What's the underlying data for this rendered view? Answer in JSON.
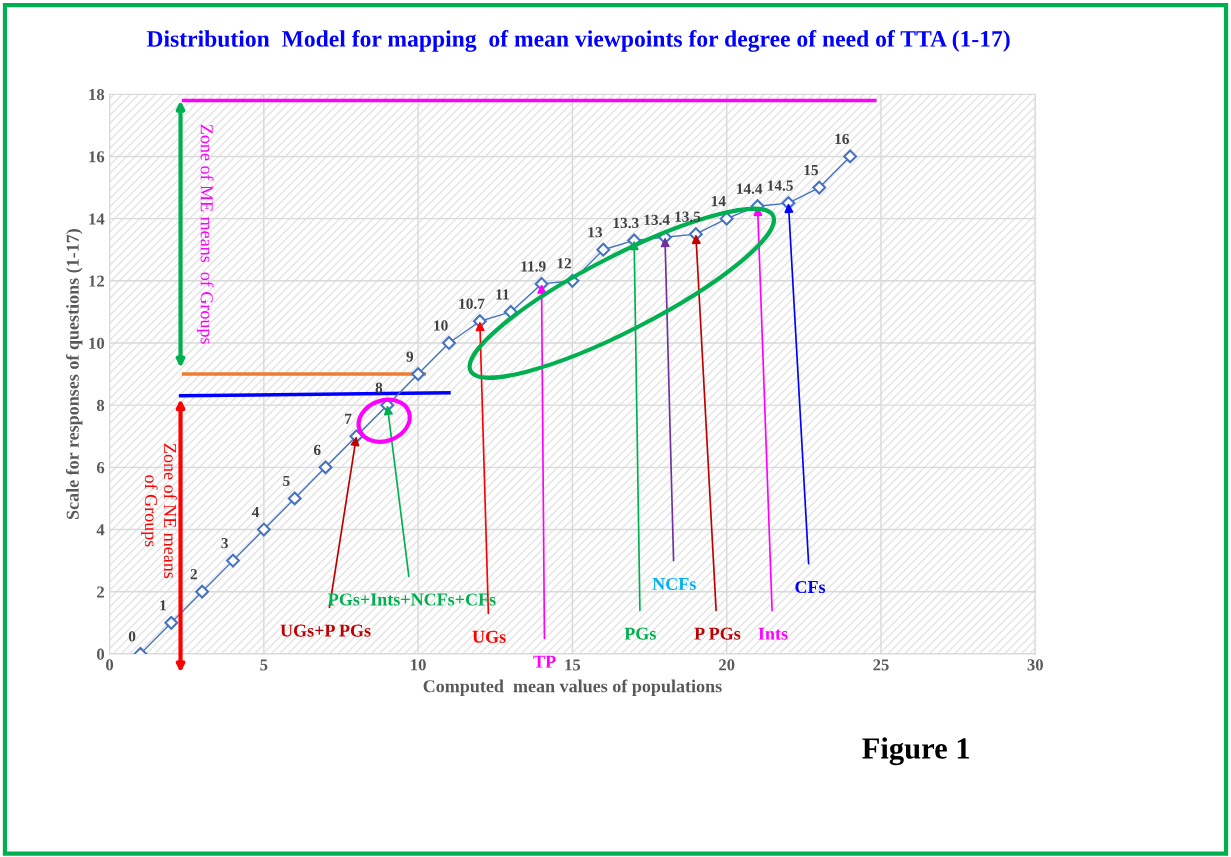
{
  "chart_data": {
    "type": "line",
    "title": "Distribution  Model for mapping  of mean viewpoints for degree of need of TTA (1-17)",
    "xlabel": "Computed  mean values of populations",
    "ylabel": "Scale for responses of questions (1-17)",
    "xlim": [
      0,
      30
    ],
    "xticks": [
      0,
      5,
      10,
      15,
      20,
      25,
      30
    ],
    "ylim": [
      0,
      18
    ],
    "yticks": [
      0,
      2,
      4,
      6,
      8,
      10,
      12,
      14,
      16,
      18
    ],
    "grid": true,
    "marker": "diamond",
    "line_style": "solid",
    "series": [
      {
        "color": "#4472c4",
        "x": [
          1,
          2,
          3,
          4,
          5,
          6,
          7,
          8,
          9,
          10,
          11,
          12,
          13,
          14,
          15,
          16,
          17,
          18,
          19,
          20,
          21,
          22,
          23,
          24
        ],
        "values": [
          0,
          1,
          2,
          3,
          4,
          5,
          6,
          7,
          8,
          9,
          10,
          10.7,
          11,
          11.9,
          12,
          13,
          13.3,
          13.4,
          13.5,
          14,
          14.4,
          14.5,
          15,
          16
        ],
        "value_labels": [
          "0",
          "1",
          "2",
          "3",
          "4",
          "5",
          "6",
          "7",
          "8",
          "9",
          "10",
          "10.7",
          "11",
          "11.9",
          "12",
          "13",
          "13.3",
          "13.4",
          "13.5",
          "14",
          "14.4",
          "14.5",
          "15",
          "16"
        ]
      },
      {
        "color": "#ff00ff",
        "x": [
          2.4,
          24.8
        ],
        "values": [
          17.8,
          17.8
        ],
        "marker": "none"
      },
      {
        "color": "#ed7d31",
        "x": [
          2.4,
          10.2
        ],
        "values": [
          9,
          9
        ],
        "marker": "none"
      },
      {
        "color": "#0000ff",
        "x": [
          2.3,
          11
        ],
        "values": [
          8.3,
          8.4
        ],
        "marker": "none"
      }
    ],
    "annotations": [
      {
        "text": "UGs+P PGs",
        "x": 8,
        "y": 7
      },
      {
        "text": "PGs+Ints+NCFs+CFs",
        "x": 9,
        "y": 8
      },
      {
        "text": "UGs",
        "x": 12,
        "y": 10.7
      },
      {
        "text": "TP",
        "x": 14,
        "y": 11.9
      },
      {
        "text": "PGs",
        "x": 17,
        "y": 13.3
      },
      {
        "text": "NCFs",
        "x": 18,
        "y": 13.4
      },
      {
        "text": "P PGs",
        "x": 19,
        "y": 13.5
      },
      {
        "text": "Ints",
        "x": 21,
        "y": 14.4
      },
      {
        "text": "CFs",
        "x": 22,
        "y": 14.5
      },
      "Zone of ME means  of Groups",
      "Zone of NE means\nof Groups",
      "Figure 1"
    ]
  }
}
